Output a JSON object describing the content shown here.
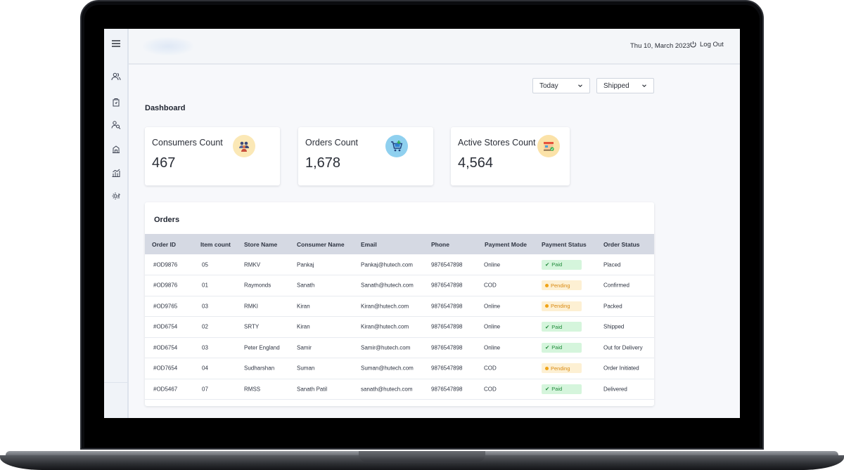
{
  "header": {
    "date": "Thu 10, March 2023",
    "logout_label": "Log Out"
  },
  "filters": {
    "period": "Today",
    "status": "Shipped"
  },
  "dashboard": {
    "title": "Dashboard",
    "cards": [
      {
        "label": "Consumers Count",
        "value": "467",
        "icon": "people-icon"
      },
      {
        "label": "Orders Count",
        "value": "1,678",
        "icon": "cart-icon"
      },
      {
        "label": "Active Stores Count",
        "value": "4,564",
        "icon": "store-icon"
      }
    ]
  },
  "orders": {
    "title": "Orders",
    "columns": [
      "Order ID",
      "Item count",
      "Store Name",
      "Consumer Name",
      "Email",
      "Phone",
      "Payment Mode",
      "Payment Status",
      "Order Status"
    ],
    "rows": [
      {
        "id": "#OD9876",
        "items": "05",
        "store": "RMKV",
        "consumer": "Pankaj",
        "email": "Pankaj@hutech.com",
        "phone": "9876547898",
        "mode": "Online",
        "payment": "Paid",
        "status": "Placed"
      },
      {
        "id": "#OD9876",
        "items": "01",
        "store": "Raymonds",
        "consumer": "Sanath",
        "email": "Sanath@hutech.com",
        "phone": "9876547898",
        "mode": "COD",
        "payment": "Pending",
        "status": "Confirmed"
      },
      {
        "id": "#OD9765",
        "items": "03",
        "store": "RMKI",
        "consumer": "Kiran",
        "email": "Kiran@hutech.com",
        "phone": "9876547898",
        "mode": "Online",
        "payment": "Pending",
        "status": "Packed"
      },
      {
        "id": "#OD6754",
        "items": "02",
        "store": "SRTY",
        "consumer": "Kiran",
        "email": "Kiran@hutech.com",
        "phone": "9876547898",
        "mode": "Online",
        "payment": "Paid",
        "status": "Shipped"
      },
      {
        "id": "#OD6754",
        "items": "03",
        "store": "Peter England",
        "consumer": "Samir",
        "email": "Samir@hutech.com",
        "phone": "9876547898",
        "mode": "Online",
        "payment": "Paid",
        "status": "Out for Delivery"
      },
      {
        "id": "#OD7654",
        "items": "04",
        "store": "Sudharshan",
        "consumer": "Suman",
        "email": "Suman@hutech.com",
        "phone": "9876547898",
        "mode": "COD",
        "payment": "Pending",
        "status": "Order Initiated"
      },
      {
        "id": "#OD5467",
        "items": "07",
        "store": "RMSS",
        "consumer": "Sanath Patil",
        "email": "sanath@hutech.com",
        "phone": "9876547898",
        "mode": "COD",
        "payment": "Paid",
        "status": "Delivered"
      }
    ]
  },
  "colors": {
    "paid_bg": "#d5f5dc",
    "paid_text": "#1f8a3a",
    "pending_bg": "#fdf0d3",
    "pending_text": "#d98a12"
  }
}
